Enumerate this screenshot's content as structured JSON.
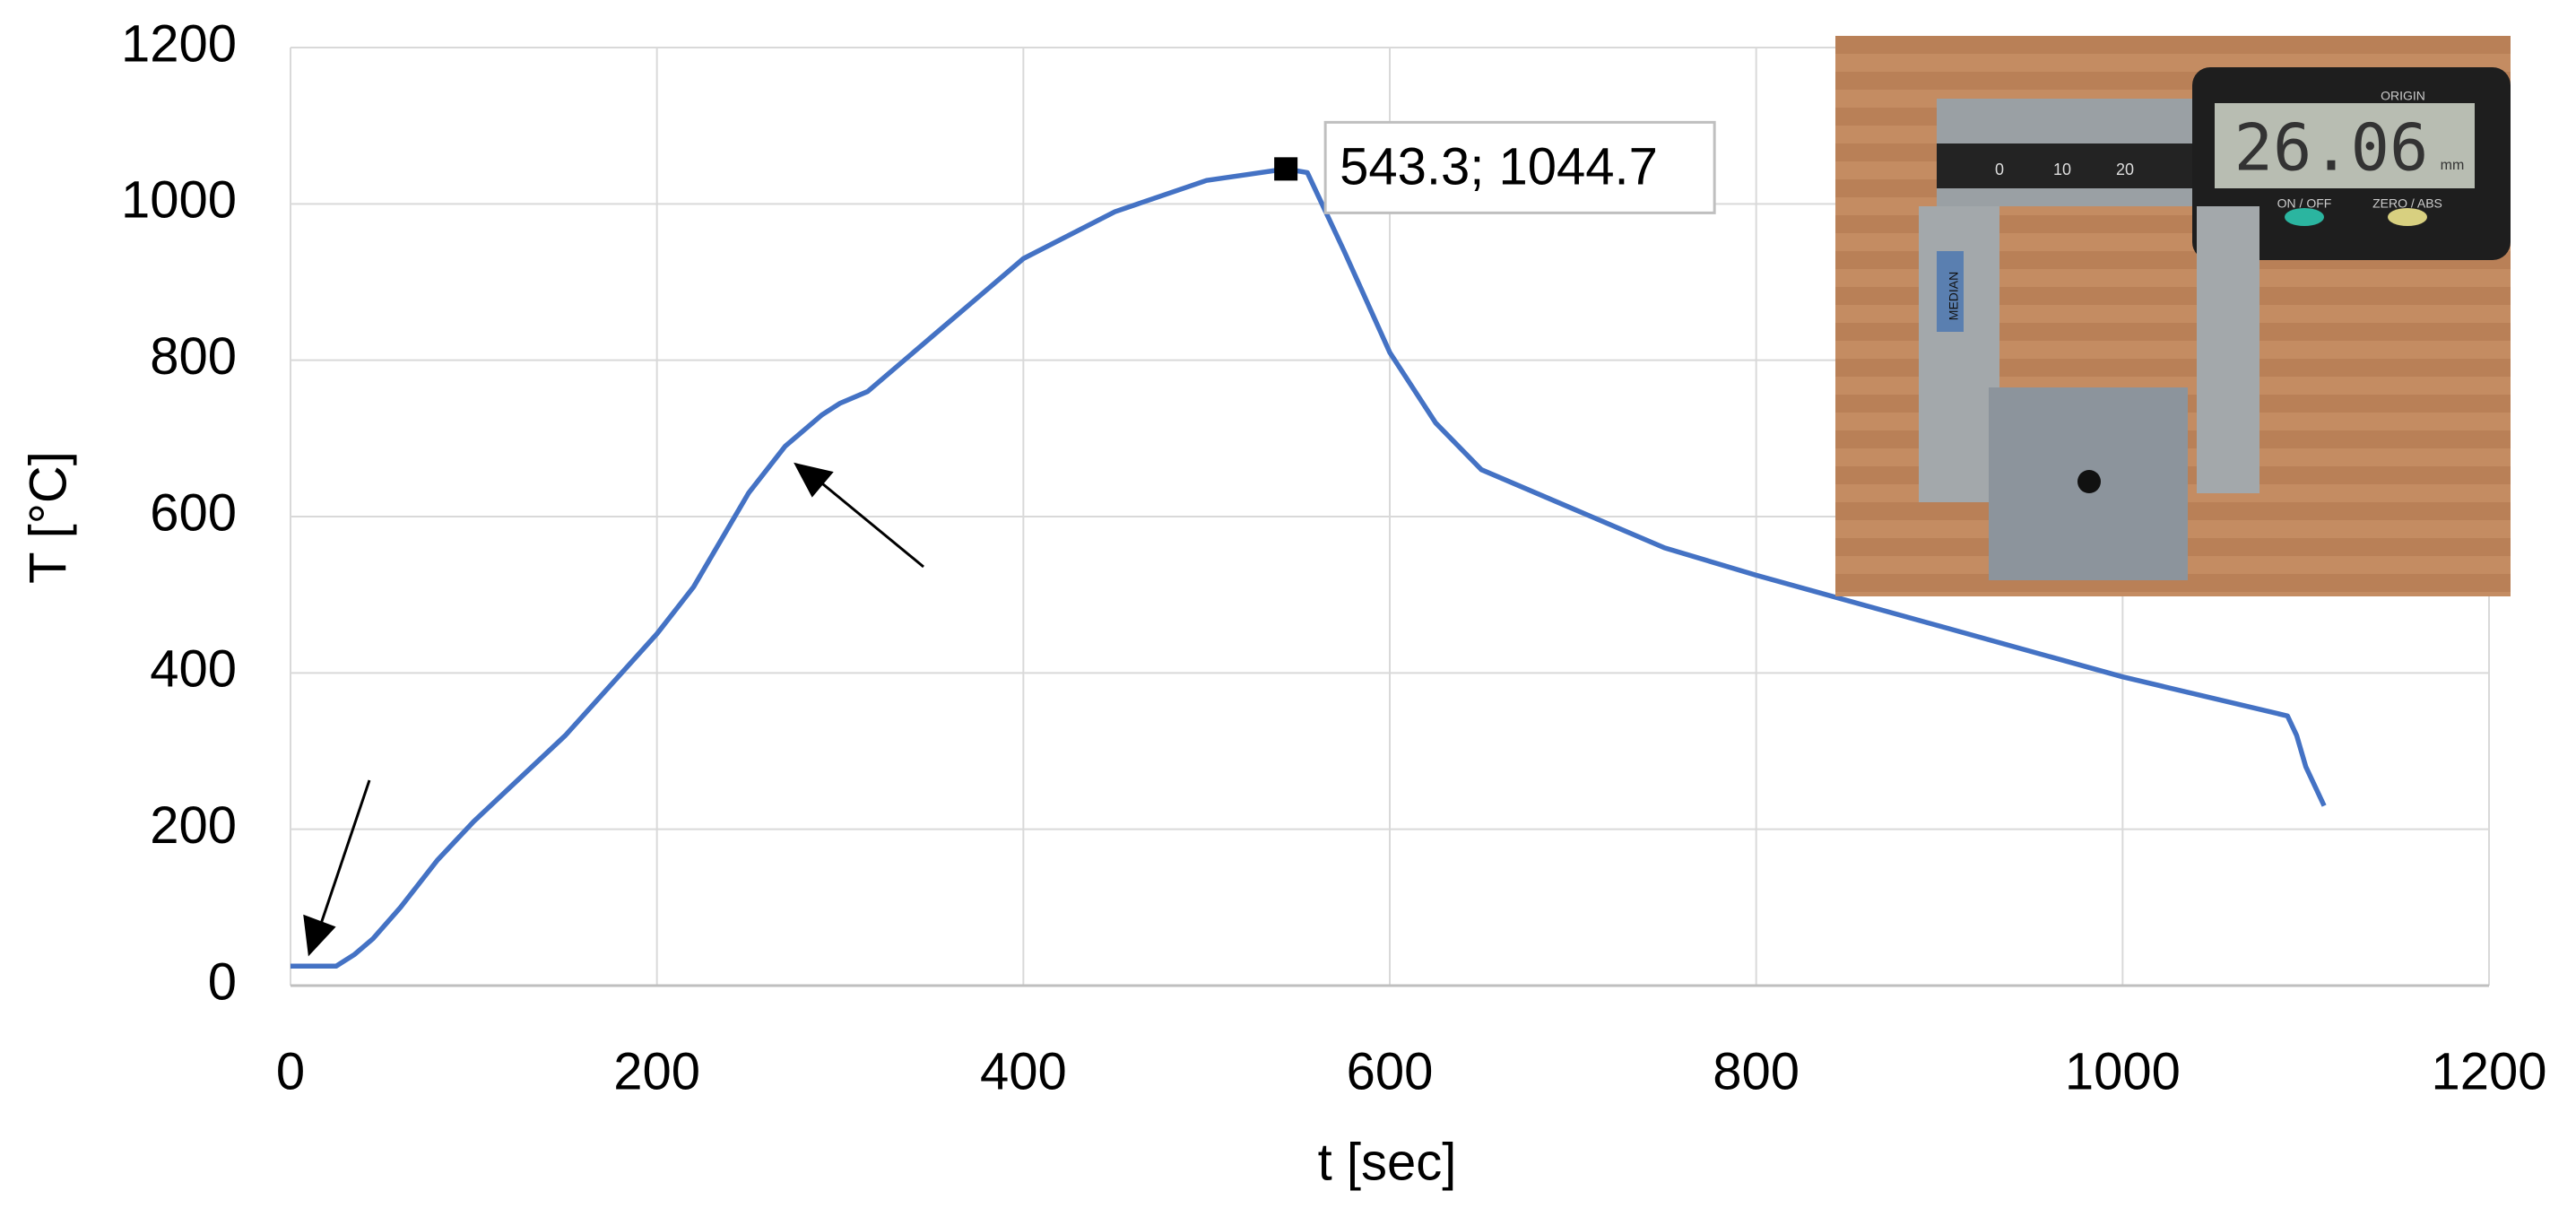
{
  "chart_data": {
    "type": "line",
    "xlabel": "t [sec]",
    "ylabel": "T [°C]",
    "x": [
      0,
      25,
      35,
      45,
      60,
      80,
      100,
      150,
      200,
      220,
      250,
      270,
      290,
      300,
      315,
      350,
      375,
      400,
      450,
      500,
      543.3,
      555,
      575,
      600,
      625,
      650,
      700,
      750,
      800,
      900,
      1000,
      1090,
      1095,
      1100,
      1110
    ],
    "series": [
      {
        "color": "#4472c4",
        "values": [
          25,
          25,
          40,
          60,
          100,
          160,
          210,
          320,
          450,
          510,
          630,
          690,
          730,
          745,
          760,
          830,
          880,
          930,
          990,
          1030,
          1044.7,
          1040,
          940,
          810,
          720,
          660,
          610,
          560,
          525,
          460,
          395,
          345,
          320,
          280,
          230
        ]
      }
    ],
    "xlim": [
      0,
      1200
    ],
    "xticks": [
      0,
      200,
      400,
      600,
      800,
      1000,
      1200
    ],
    "ylim": [
      0,
      1200
    ],
    "yticks": [
      0,
      200,
      400,
      600,
      800,
      1000,
      1200
    ],
    "grid": true,
    "annotations": [
      {
        "text": "543.3; 1044.7",
        "x": 543.3,
        "y": 1044.7
      }
    ]
  },
  "inset_photo": {
    "display": "26.06",
    "unit": "mm",
    "origin": "ORIGIN",
    "on_off": "ON / OFF",
    "zero_abs": "ZERO / ABS",
    "scale": [
      "0",
      "10",
      "20"
    ],
    "tag": "MEDIAN"
  }
}
